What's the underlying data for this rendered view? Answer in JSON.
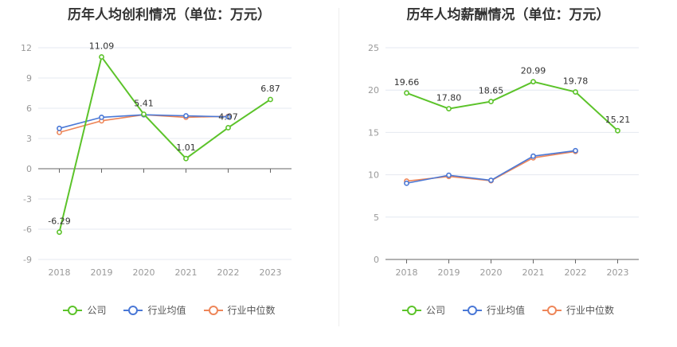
{
  "colors": {
    "company": "#5cc32a",
    "industry_avg": "#4a78d6",
    "industry_median": "#ee8659"
  },
  "legend": {
    "company": "公司",
    "industry_avg": "行业均值",
    "industry_median": "行业中位数"
  },
  "chart_data": [
    {
      "type": "line",
      "title": "历年人均创利情况（单位：万元）",
      "categories": [
        "2018",
        "2019",
        "2020",
        "2021",
        "2022",
        "2023"
      ],
      "ylim": [
        -9,
        12
      ],
      "yticks": [
        "12",
        "9",
        "6",
        "3",
        "0",
        "-3",
        "-6",
        "-9"
      ],
      "grid": true,
      "legend_position": "bottom",
      "series": [
        {
          "name": "公司",
          "key": "company",
          "values": [
            -6.29,
            11.09,
            5.41,
            1.01,
            4.07,
            6.87
          ],
          "labels": [
            "-6.29",
            "11.09",
            "5.41",
            "1.01",
            "4.07",
            "6.87"
          ]
        },
        {
          "name": "行业均值",
          "key": "industry_avg",
          "values": [
            4.0,
            5.1,
            5.35,
            5.25,
            5.15,
            null
          ]
        },
        {
          "name": "行业中位数",
          "key": "industry_median",
          "values": [
            3.6,
            4.75,
            5.35,
            5.1,
            5.2,
            null
          ]
        }
      ]
    },
    {
      "type": "line",
      "title": "历年人均薪酬情况（单位：万元）",
      "categories": [
        "2018",
        "2019",
        "2020",
        "2021",
        "2022",
        "2023"
      ],
      "ylim": [
        0,
        25
      ],
      "yticks": [
        "25",
        "20",
        "15",
        "10",
        "5",
        "0"
      ],
      "grid": true,
      "legend_position": "bottom",
      "series": [
        {
          "name": "公司",
          "key": "company",
          "values": [
            19.66,
            17.8,
            18.65,
            20.99,
            19.78,
            15.21
          ],
          "labels": [
            "19.66",
            "17.80",
            "18.65",
            "20.99",
            "19.78",
            "15.21"
          ]
        },
        {
          "name": "行业均值",
          "key": "industry_avg",
          "values": [
            9.0,
            9.95,
            9.35,
            12.2,
            12.85,
            null
          ]
        },
        {
          "name": "行业中位数",
          "key": "industry_median",
          "values": [
            9.25,
            9.8,
            9.3,
            12.0,
            12.75,
            null
          ]
        }
      ]
    }
  ]
}
